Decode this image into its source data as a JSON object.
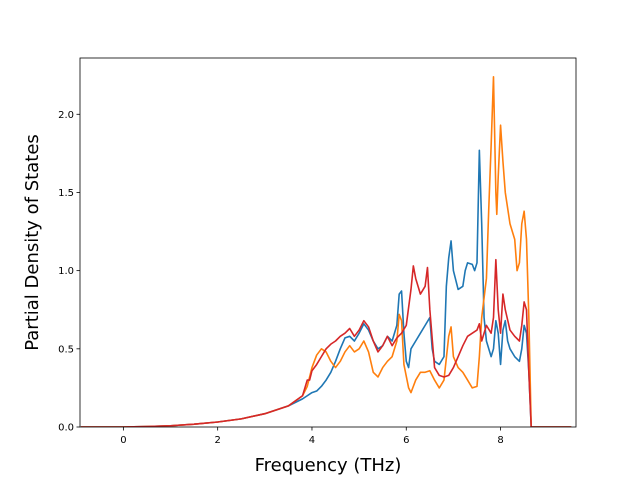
{
  "chart_data": {
    "type": "line",
    "title": "",
    "xlabel": "Frequency (THz)",
    "ylabel": "Partial Density of States",
    "xlim": [
      -0.92,
      9.6
    ],
    "ylim": [
      0,
      2.36
    ],
    "xticks": [
      0,
      2,
      4,
      6,
      8
    ],
    "yticks": [
      0.0,
      0.5,
      1.0,
      1.5,
      2.0
    ],
    "xtick_labels": [
      "0",
      "2",
      "4",
      "6",
      "8"
    ],
    "ytick_labels": [
      "0.0",
      "0.5",
      "1.0",
      "1.5",
      "2.0"
    ],
    "grid": false,
    "legend": "none",
    "series": [
      {
        "color": "#1f77b4",
        "points": [
          [
            -0.9,
            0
          ],
          [
            0,
            0
          ],
          [
            0.5,
            0.003
          ],
          [
            1,
            0.008
          ],
          [
            1.5,
            0.018
          ],
          [
            2,
            0.032
          ],
          [
            2.5,
            0.052
          ],
          [
            3,
            0.085
          ],
          [
            3.5,
            0.135
          ],
          [
            3.8,
            0.18
          ],
          [
            3.9,
            0.2
          ],
          [
            4.0,
            0.22
          ],
          [
            4.1,
            0.23
          ],
          [
            4.2,
            0.26
          ],
          [
            4.3,
            0.3
          ],
          [
            4.4,
            0.35
          ],
          [
            4.5,
            0.42
          ],
          [
            4.6,
            0.5
          ],
          [
            4.7,
            0.57
          ],
          [
            4.8,
            0.58
          ],
          [
            4.9,
            0.55
          ],
          [
            5.0,
            0.6
          ],
          [
            5.1,
            0.66
          ],
          [
            5.2,
            0.62
          ],
          [
            5.3,
            0.55
          ],
          [
            5.4,
            0.5
          ],
          [
            5.5,
            0.52
          ],
          [
            5.6,
            0.58
          ],
          [
            5.7,
            0.55
          ],
          [
            5.8,
            0.65
          ],
          [
            5.85,
            0.85
          ],
          [
            5.9,
            0.87
          ],
          [
            5.95,
            0.6
          ],
          [
            6.0,
            0.42
          ],
          [
            6.05,
            0.38
          ],
          [
            6.1,
            0.5
          ],
          [
            6.2,
            0.55
          ],
          [
            6.3,
            0.6
          ],
          [
            6.4,
            0.65
          ],
          [
            6.5,
            0.7
          ],
          [
            6.55,
            0.5
          ],
          [
            6.6,
            0.42
          ],
          [
            6.7,
            0.4
          ],
          [
            6.8,
            0.45
          ],
          [
            6.85,
            0.9
          ],
          [
            6.9,
            1.08
          ],
          [
            6.95,
            1.19
          ],
          [
            7.0,
            1.0
          ],
          [
            7.1,
            0.88
          ],
          [
            7.2,
            0.9
          ],
          [
            7.25,
            1.0
          ],
          [
            7.3,
            1.05
          ],
          [
            7.4,
            1.04
          ],
          [
            7.45,
            1.0
          ],
          [
            7.5,
            1.05
          ],
          [
            7.55,
            1.77
          ],
          [
            7.6,
            1.3
          ],
          [
            7.65,
            0.7
          ],
          [
            7.7,
            0.55
          ],
          [
            7.8,
            0.45
          ],
          [
            7.85,
            0.5
          ],
          [
            7.9,
            0.68
          ],
          [
            7.95,
            0.6
          ],
          [
            8.0,
            0.4
          ],
          [
            8.05,
            0.62
          ],
          [
            8.1,
            0.68
          ],
          [
            8.15,
            0.55
          ],
          [
            8.2,
            0.5
          ],
          [
            8.3,
            0.45
          ],
          [
            8.4,
            0.42
          ],
          [
            8.45,
            0.5
          ],
          [
            8.5,
            0.65
          ],
          [
            8.55,
            0.6
          ],
          [
            8.6,
            0.35
          ],
          [
            8.65,
            0
          ],
          [
            9.5,
            0
          ]
        ]
      },
      {
        "color": "#ff7f0e",
        "points": [
          [
            -0.9,
            0
          ],
          [
            0,
            0
          ],
          [
            0.5,
            0.003
          ],
          [
            1,
            0.008
          ],
          [
            1.5,
            0.018
          ],
          [
            2,
            0.032
          ],
          [
            2.5,
            0.052
          ],
          [
            3,
            0.085
          ],
          [
            3.5,
            0.135
          ],
          [
            3.8,
            0.2
          ],
          [
            3.9,
            0.26
          ],
          [
            4.0,
            0.38
          ],
          [
            4.1,
            0.46
          ],
          [
            4.2,
            0.5
          ],
          [
            4.3,
            0.48
          ],
          [
            4.4,
            0.42
          ],
          [
            4.5,
            0.38
          ],
          [
            4.6,
            0.42
          ],
          [
            4.7,
            0.48
          ],
          [
            4.8,
            0.52
          ],
          [
            4.9,
            0.48
          ],
          [
            5.0,
            0.5
          ],
          [
            5.1,
            0.55
          ],
          [
            5.2,
            0.48
          ],
          [
            5.3,
            0.35
          ],
          [
            5.4,
            0.32
          ],
          [
            5.5,
            0.38
          ],
          [
            5.6,
            0.42
          ],
          [
            5.7,
            0.45
          ],
          [
            5.8,
            0.55
          ],
          [
            5.85,
            0.72
          ],
          [
            5.9,
            0.68
          ],
          [
            5.95,
            0.4
          ],
          [
            6.05,
            0.25
          ],
          [
            6.1,
            0.22
          ],
          [
            6.2,
            0.3
          ],
          [
            6.3,
            0.35
          ],
          [
            6.4,
            0.35
          ],
          [
            6.5,
            0.36
          ],
          [
            6.6,
            0.3
          ],
          [
            6.7,
            0.25
          ],
          [
            6.8,
            0.3
          ],
          [
            6.9,
            0.58
          ],
          [
            6.95,
            0.64
          ],
          [
            7.0,
            0.45
          ],
          [
            7.1,
            0.38
          ],
          [
            7.2,
            0.35
          ],
          [
            7.3,
            0.3
          ],
          [
            7.4,
            0.25
          ],
          [
            7.5,
            0.26
          ],
          [
            7.55,
            0.45
          ],
          [
            7.6,
            0.7
          ],
          [
            7.7,
            0.95
          ],
          [
            7.75,
            1.4
          ],
          [
            7.8,
            1.8
          ],
          [
            7.85,
            2.24
          ],
          [
            7.9,
            1.5
          ],
          [
            7.92,
            1.36
          ],
          [
            7.95,
            1.6
          ],
          [
            8.0,
            1.93
          ],
          [
            8.05,
            1.7
          ],
          [
            8.1,
            1.5
          ],
          [
            8.2,
            1.3
          ],
          [
            8.3,
            1.2
          ],
          [
            8.35,
            1.0
          ],
          [
            8.4,
            1.05
          ],
          [
            8.45,
            1.3
          ],
          [
            8.5,
            1.38
          ],
          [
            8.55,
            1.2
          ],
          [
            8.6,
            0.7
          ],
          [
            8.65,
            0
          ],
          [
            9.5,
            0
          ]
        ]
      },
      {
        "color": "#d62728",
        "points": [
          [
            -0.9,
            0
          ],
          [
            0,
            0
          ],
          [
            0.5,
            0.003
          ],
          [
            1,
            0.008
          ],
          [
            1.5,
            0.018
          ],
          [
            2,
            0.032
          ],
          [
            2.5,
            0.052
          ],
          [
            3,
            0.085
          ],
          [
            3.5,
            0.135
          ],
          [
            3.8,
            0.2
          ],
          [
            3.9,
            0.3
          ],
          [
            3.95,
            0.3
          ],
          [
            4.0,
            0.36
          ],
          [
            4.1,
            0.4
          ],
          [
            4.2,
            0.45
          ],
          [
            4.3,
            0.5
          ],
          [
            4.4,
            0.53
          ],
          [
            4.5,
            0.55
          ],
          [
            4.6,
            0.58
          ],
          [
            4.7,
            0.6
          ],
          [
            4.8,
            0.63
          ],
          [
            4.9,
            0.58
          ],
          [
            5.0,
            0.62
          ],
          [
            5.1,
            0.68
          ],
          [
            5.2,
            0.64
          ],
          [
            5.3,
            0.55
          ],
          [
            5.4,
            0.48
          ],
          [
            5.5,
            0.52
          ],
          [
            5.6,
            0.58
          ],
          [
            5.7,
            0.52
          ],
          [
            5.8,
            0.57
          ],
          [
            5.9,
            0.6
          ],
          [
            6.0,
            0.65
          ],
          [
            6.1,
            0.88
          ],
          [
            6.15,
            1.03
          ],
          [
            6.2,
            0.95
          ],
          [
            6.3,
            0.85
          ],
          [
            6.4,
            0.9
          ],
          [
            6.45,
            1.02
          ],
          [
            6.5,
            0.75
          ],
          [
            6.6,
            0.38
          ],
          [
            6.7,
            0.33
          ],
          [
            6.8,
            0.32
          ],
          [
            6.9,
            0.33
          ],
          [
            7.0,
            0.38
          ],
          [
            7.1,
            0.45
          ],
          [
            7.2,
            0.52
          ],
          [
            7.3,
            0.58
          ],
          [
            7.4,
            0.6
          ],
          [
            7.5,
            0.62
          ],
          [
            7.55,
            0.66
          ],
          [
            7.6,
            0.55
          ],
          [
            7.7,
            0.65
          ],
          [
            7.8,
            0.6
          ],
          [
            7.85,
            0.7
          ],
          [
            7.9,
            1.07
          ],
          [
            7.95,
            0.75
          ],
          [
            8.0,
            0.6
          ],
          [
            8.05,
            0.85
          ],
          [
            8.1,
            0.75
          ],
          [
            8.2,
            0.62
          ],
          [
            8.3,
            0.58
          ],
          [
            8.4,
            0.55
          ],
          [
            8.45,
            0.65
          ],
          [
            8.5,
            0.8
          ],
          [
            8.55,
            0.75
          ],
          [
            8.6,
            0.35
          ],
          [
            8.65,
            0
          ],
          [
            9.5,
            0
          ]
        ]
      }
    ]
  }
}
